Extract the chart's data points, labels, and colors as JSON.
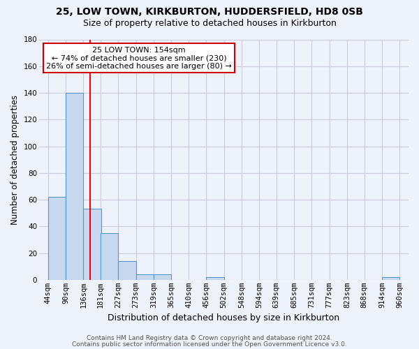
{
  "title1": "25, LOW TOWN, KIRKBURTON, HUDDERSFIELD, HD8 0SB",
  "title2": "Size of property relative to detached houses in Kirkburton",
  "xlabel": "Distribution of detached houses by size in Kirkburton",
  "ylabel": "Number of detached properties",
  "bin_labels": [
    "44sqm",
    "90sqm",
    "136sqm",
    "181sqm",
    "227sqm",
    "273sqm",
    "319sqm",
    "365sqm",
    "410sqm",
    "456sqm",
    "502sqm",
    "548sqm",
    "594sqm",
    "639sqm",
    "685sqm",
    "731sqm",
    "777sqm",
    "823sqm",
    "868sqm",
    "914sqm",
    "960sqm"
  ],
  "bin_edges": [
    44,
    90,
    136,
    181,
    227,
    273,
    319,
    365,
    410,
    456,
    502,
    548,
    594,
    639,
    685,
    731,
    777,
    823,
    868,
    914,
    960
  ],
  "bar_heights": [
    62,
    140,
    53,
    35,
    14,
    4,
    4,
    0,
    0,
    2,
    0,
    0,
    0,
    0,
    0,
    0,
    0,
    0,
    0,
    2
  ],
  "bar_color": "#c8d8ee",
  "bar_edgecolor": "#5599cc",
  "bar_linewidth": 0.8,
  "red_line_x": 154,
  "annotation_line1": "25 LOW TOWN: 154sqm",
  "annotation_line2": "← 74% of detached houses are smaller (230)",
  "annotation_line3": "26% of semi-detached houses are larger (80) →",
  "annotation_box_color": "#ffffff",
  "annotation_box_edgecolor": "#cc0000",
  "ylim": [
    0,
    180
  ],
  "yticks": [
    0,
    20,
    40,
    60,
    80,
    100,
    120,
    140,
    160,
    180
  ],
  "background_color": "#eef2fb",
  "grid_color": "#ccccdd",
  "footer1": "Contains HM Land Registry data © Crown copyright and database right 2024.",
  "footer2": "Contains public sector information licensed under the Open Government Licence v3.0.",
  "title1_fontsize": 10,
  "title2_fontsize": 9,
  "axis_label_fontsize": 8.5,
  "tick_fontsize": 7.5,
  "annotation_fontsize": 8,
  "footer_fontsize": 6.5
}
